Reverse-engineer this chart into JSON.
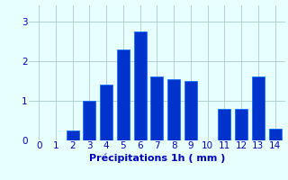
{
  "categories": [
    0,
    1,
    2,
    3,
    4,
    5,
    6,
    7,
    8,
    9,
    10,
    11,
    12,
    13,
    14
  ],
  "values": [
    0.0,
    0.0,
    0.25,
    1.0,
    1.4,
    2.3,
    2.75,
    1.6,
    1.55,
    1.5,
    0.0,
    0.8,
    0.8,
    1.6,
    0.3
  ],
  "bar_color": "#0033cc",
  "bar_edge_color": "#0066ff",
  "background_color": "#e8ffff",
  "grid_color": "#aacccc",
  "axis_label_color": "#0000bb",
  "tick_color": "#0000bb",
  "xlabel": "Précipitations 1h ( mm )",
  "ylim": [
    0,
    3.4
  ],
  "yticks": [
    0,
    1,
    2,
    3
  ],
  "xlabel_fontsize": 8,
  "tick_fontsize": 7.5
}
